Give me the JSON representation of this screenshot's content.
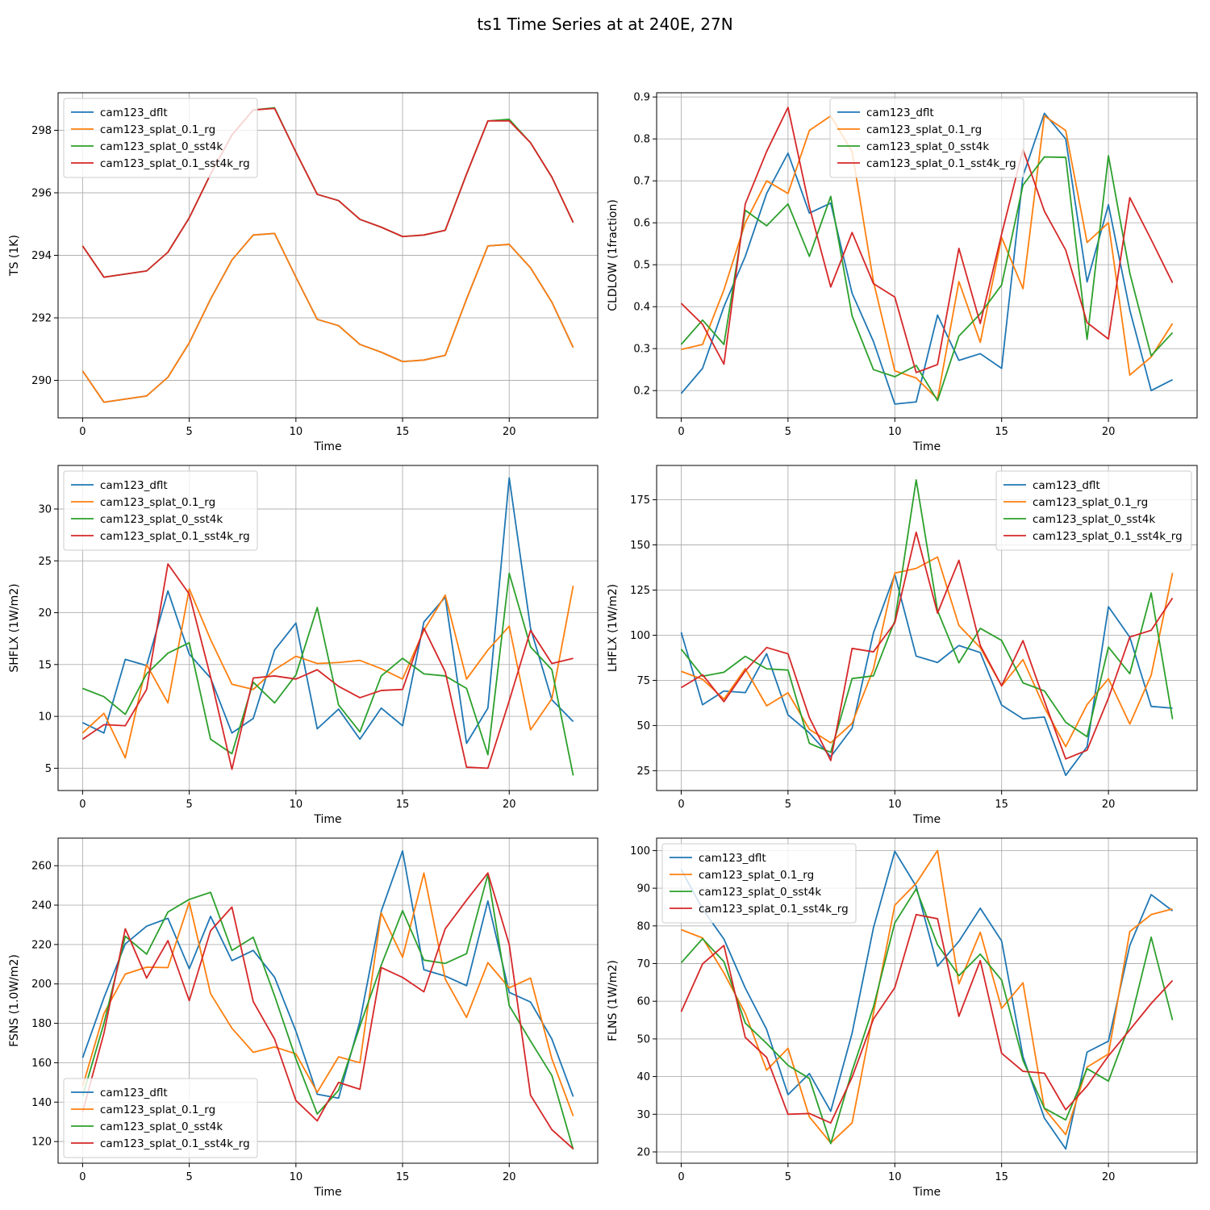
{
  "figure": {
    "title": "ts1 Time Series at at 240E, 27N"
  },
  "colors": {
    "cam123_dflt": "#1f77b4",
    "cam123_splat_0.1_rg": "#ff7f0e",
    "cam123_splat_0_sst4k": "#2ca02c",
    "cam123_splat_0.1_sst4k_rg": "#d62728"
  },
  "chart_data": [
    {
      "type": "line",
      "title": "",
      "xlabel": "Time",
      "ylabel": "TS (1K)",
      "xlim": [
        -1.15,
        24.15
      ],
      "ylim": [
        288.8,
        299.2
      ],
      "xticks": [
        0,
        5,
        10,
        15,
        20
      ],
      "yticks": [
        290,
        292,
        294,
        296,
        298
      ],
      "grid": true,
      "legend": "upper left",
      "x": [
        0,
        1,
        2,
        3,
        4,
        5,
        6,
        7,
        8,
        9,
        10,
        11,
        12,
        13,
        14,
        15,
        16,
        17,
        18,
        19,
        20,
        21,
        22,
        23
      ],
      "series": [
        {
          "name": "cam123_dflt",
          "values": [
            290.3,
            289.3,
            289.4,
            289.5,
            290.1,
            291.2,
            292.6,
            293.85,
            294.65,
            294.7,
            293.3,
            291.95,
            291.75,
            291.15,
            290.9,
            290.6,
            290.65,
            290.8,
            292.6,
            294.3,
            294.35,
            293.6,
            292.5,
            291.05
          ]
        },
        {
          "name": "cam123_splat_0.1_rg",
          "values": [
            290.3,
            289.3,
            289.4,
            289.5,
            290.1,
            291.2,
            292.6,
            293.85,
            294.65,
            294.7,
            293.3,
            291.95,
            291.75,
            291.15,
            290.9,
            290.6,
            290.65,
            290.8,
            292.6,
            294.3,
            294.35,
            293.6,
            292.5,
            291.05
          ]
        },
        {
          "name": "cam123_splat_0_sst4k",
          "values": [
            294.3,
            293.3,
            293.4,
            293.5,
            294.1,
            295.2,
            296.6,
            297.85,
            298.65,
            298.72,
            297.3,
            295.95,
            295.75,
            295.15,
            294.9,
            294.6,
            294.65,
            294.8,
            296.6,
            298.3,
            298.35,
            297.6,
            296.5,
            295.05
          ]
        },
        {
          "name": "cam123_splat_0.1_sst4k_rg",
          "values": [
            294.3,
            293.3,
            293.4,
            293.5,
            294.1,
            295.2,
            296.6,
            297.85,
            298.65,
            298.7,
            297.3,
            295.95,
            295.75,
            295.15,
            294.9,
            294.6,
            294.65,
            294.8,
            296.6,
            298.3,
            298.3,
            297.6,
            296.5,
            295.05
          ]
        }
      ]
    },
    {
      "type": "line",
      "title": "",
      "xlabel": "Time",
      "ylabel": "CLDLOW (1fraction)",
      "xlim": [
        -1.15,
        24.15
      ],
      "ylim": [
        0.135,
        0.91
      ],
      "xticks": [
        0,
        5,
        10,
        15,
        20
      ],
      "yticks": [
        0.2,
        0.3,
        0.4,
        0.5,
        0.6,
        0.7,
        0.8,
        0.9
      ],
      "grid": true,
      "legend": "upper center",
      "x": [
        0,
        1,
        2,
        3,
        4,
        5,
        6,
        7,
        8,
        9,
        10,
        11,
        12,
        13,
        14,
        15,
        16,
        17,
        18,
        19,
        20,
        21,
        22,
        23
      ],
      "series": [
        {
          "name": "cam123_dflt",
          "values": [
            0.193,
            0.253,
            0.4,
            0.52,
            0.67,
            0.766,
            0.623,
            0.647,
            0.432,
            0.317,
            0.168,
            0.173,
            0.38,
            0.272,
            0.288,
            0.253,
            0.712,
            0.861,
            0.8,
            0.459,
            0.643,
            0.392,
            0.2,
            0.226
          ]
        },
        {
          "name": "cam123_splat_0.1_rg",
          "values": [
            0.298,
            0.31,
            0.44,
            0.6,
            0.7,
            0.67,
            0.82,
            0.855,
            0.77,
            0.46,
            0.247,
            0.23,
            0.18,
            0.46,
            0.315,
            0.565,
            0.443,
            0.855,
            0.82,
            0.553,
            0.6,
            0.237,
            0.28,
            0.36
          ]
        },
        {
          "name": "cam123_splat_0_sst4k",
          "values": [
            0.31,
            0.368,
            0.31,
            0.63,
            0.593,
            0.645,
            0.52,
            0.663,
            0.378,
            0.25,
            0.233,
            0.26,
            0.176,
            0.33,
            0.383,
            0.452,
            0.69,
            0.757,
            0.756,
            0.322,
            0.76,
            0.48,
            0.283,
            0.338
          ]
        },
        {
          "name": "cam123_splat_0.1_sst4k_rg",
          "values": [
            0.408,
            0.358,
            0.263,
            0.645,
            0.77,
            0.875,
            0.638,
            0.447,
            0.577,
            0.455,
            0.423,
            0.243,
            0.262,
            0.539,
            0.36,
            0.573,
            0.775,
            0.628,
            0.535,
            0.362,
            0.323,
            0.66,
            0.56,
            0.457
          ]
        }
      ]
    },
    {
      "type": "line",
      "title": "",
      "xlabel": "Time",
      "ylabel": "SHFLX (1W/m2)",
      "xlim": [
        -1.15,
        24.15
      ],
      "ylim": [
        2.85,
        34.2
      ],
      "xticks": [
        0,
        5,
        10,
        15,
        20
      ],
      "yticks": [
        5,
        10,
        15,
        20,
        25,
        30
      ],
      "grid": true,
      "legend": "upper left",
      "x": [
        0,
        1,
        2,
        3,
        4,
        5,
        6,
        7,
        8,
        9,
        10,
        11,
        12,
        13,
        14,
        15,
        16,
        17,
        18,
        19,
        20,
        21,
        22,
        23
      ],
      "series": [
        {
          "name": "cam123_dflt",
          "values": [
            9.4,
            8.4,
            15.5,
            14.9,
            22.1,
            16.0,
            13.7,
            8.4,
            9.8,
            16.4,
            19.0,
            8.8,
            10.7,
            7.8,
            10.8,
            9.1,
            19.1,
            21.5,
            7.4,
            10.8,
            33.0,
            18.5,
            11.6,
            9.5
          ]
        },
        {
          "name": "cam123_splat_0.1_rg",
          "values": [
            8.4,
            10.3,
            6.0,
            15.0,
            11.3,
            22.3,
            17.4,
            13.1,
            12.6,
            14.5,
            15.8,
            15.1,
            15.2,
            15.4,
            14.6,
            13.6,
            18.3,
            21.7,
            13.6,
            16.4,
            18.7,
            8.7,
            11.7,
            22.6
          ]
        },
        {
          "name": "cam123_splat_0_sst4k",
          "values": [
            12.7,
            11.9,
            10.2,
            14.1,
            16.1,
            17.1,
            7.8,
            6.4,
            13.3,
            11.3,
            14.0,
            20.5,
            11.1,
            8.5,
            13.9,
            15.6,
            14.1,
            13.9,
            12.7,
            6.3,
            23.8,
            16.7,
            14.5,
            4.3
          ]
        },
        {
          "name": "cam123_splat_0.1_sst4k_rg",
          "values": [
            7.8,
            9.2,
            9.1,
            12.6,
            24.7,
            21.8,
            13.8,
            4.9,
            13.7,
            13.9,
            13.6,
            14.5,
            12.9,
            11.8,
            12.5,
            12.6,
            18.5,
            14.3,
            5.1,
            5.0,
            11.5,
            18.3,
            15.1,
            15.6
          ]
        }
      ]
    },
    {
      "type": "line",
      "title": "",
      "xlabel": "Time",
      "ylabel": "LHFLX (1W/m2)",
      "xlim": [
        -1.15,
        24.15
      ],
      "ylim": [
        14.0,
        194.0
      ],
      "xticks": [
        0,
        5,
        10,
        15,
        20
      ],
      "yticks": [
        25,
        50,
        75,
        100,
        125,
        150,
        175
      ],
      "grid": true,
      "legend": "upper right",
      "x": [
        0,
        1,
        2,
        3,
        4,
        5,
        6,
        7,
        8,
        9,
        10,
        11,
        12,
        13,
        14,
        15,
        16,
        17,
        18,
        19,
        20,
        21,
        22,
        23
      ],
      "series": [
        {
          "name": "cam123_dflt",
          "values": [
            101.6,
            61.5,
            69.1,
            68.2,
            89.8,
            55.9,
            45.9,
            32.7,
            48.5,
            101.3,
            133.7,
            88.4,
            84.9,
            94.3,
            90.4,
            61.3,
            53.7,
            54.7,
            22.4,
            38.3,
            115.8,
            98.9,
            60.6,
            59.6
          ]
        },
        {
          "name": "cam123_splat_0.1_rg",
          "values": [
            80.0,
            75.6,
            64.6,
            81.5,
            60.9,
            68.1,
            47.9,
            40.4,
            51.2,
            81.3,
            134.4,
            137.0,
            143.3,
            105.4,
            93.1,
            71.9,
            86.5,
            60.0,
            38.3,
            61.6,
            75.9,
            50.8,
            77.8,
            134.5
          ]
        },
        {
          "name": "cam123_splat_0_sst4k",
          "values": [
            92.3,
            77.3,
            79.5,
            88.3,
            81.4,
            80.7,
            40.1,
            35.2,
            76.0,
            77.5,
            108.0,
            186.0,
            113.6,
            84.7,
            103.8,
            97.1,
            73.6,
            69.2,
            51.8,
            43.8,
            93.4,
            78.7,
            123.4,
            53.5
          ]
        },
        {
          "name": "cam123_splat_0.1_sst4k_rg",
          "values": [
            71.0,
            78.1,
            63.2,
            80.3,
            93.2,
            89.7,
            54.4,
            30.6,
            92.7,
            90.8,
            106.9,
            157.0,
            112.2,
            141.5,
            94.3,
            72.0,
            97.0,
            63.6,
            31.5,
            36.3,
            65.2,
            99.0,
            102.7,
            120.6
          ]
        }
      ]
    },
    {
      "type": "line",
      "title": "",
      "xlabel": "Time",
      "ylabel": "FSNS (1.0W/m2)",
      "xlim": [
        -1.15,
        24.15
      ],
      "ylim": [
        109.0,
        274.0
      ],
      "xticks": [
        0,
        5,
        10,
        15,
        20
      ],
      "yticks": [
        120,
        140,
        160,
        180,
        200,
        220,
        240,
        260
      ],
      "grid": true,
      "legend": "lower left",
      "x": [
        0,
        1,
        2,
        3,
        4,
        5,
        6,
        7,
        8,
        9,
        10,
        11,
        12,
        13,
        14,
        15,
        16,
        17,
        18,
        19,
        20,
        21,
        22,
        23
      ],
      "series": [
        {
          "name": "cam123_dflt",
          "values": [
            162.5,
            193.0,
            220.3,
            229.3,
            233.3,
            207.7,
            234.3,
            211.8,
            217.0,
            203.4,
            176.0,
            144.0,
            142.0,
            181.0,
            236.9,
            267.5,
            207.2,
            204.0,
            199.1,
            242.1,
            195.7,
            190.8,
            172.0,
            142.8
          ]
        },
        {
          "name": "cam123_splat_0.1_rg",
          "values": [
            148.0,
            185.0,
            205.0,
            208.5,
            208.3,
            241.5,
            195.0,
            177.5,
            165.3,
            168.0,
            164.5,
            145.0,
            163.0,
            160.0,
            236.0,
            213.5,
            256.3,
            202.5,
            183.0,
            210.8,
            198.0,
            203.0,
            162.0,
            133.0
          ]
        },
        {
          "name": "cam123_splat_0_sst4k",
          "values": [
            143.0,
            180.0,
            224.2,
            215.1,
            236.5,
            242.9,
            246.5,
            217.0,
            223.7,
            194.0,
            162.0,
            134.0,
            146.0,
            178.5,
            209.5,
            237.2,
            212.1,
            210.4,
            215.4,
            255.5,
            189.0,
            171.0,
            153.5,
            116.0
          ]
        },
        {
          "name": "cam123_splat_0.1_sst4k_rg",
          "values": [
            135.0,
            175.0,
            228.0,
            203.0,
            222.0,
            191.5,
            227.0,
            239.0,
            191.0,
            172.0,
            140.8,
            130.5,
            150.0,
            146.5,
            208.3,
            203.3,
            196.0,
            228.0,
            242.5,
            256.3,
            220.0,
            143.5,
            126.0,
            116.3
          ]
        }
      ]
    },
    {
      "type": "line",
      "title": "",
      "xlabel": "Time",
      "ylabel": "FLNS (1W/m2)",
      "xlim": [
        -1.15,
        24.15
      ],
      "ylim": [
        17.0,
        103.3
      ],
      "xticks": [
        0,
        5,
        10,
        15,
        20
      ],
      "yticks": [
        20,
        30,
        40,
        50,
        60,
        70,
        80,
        90,
        100
      ],
      "grid": true,
      "legend": "upper left",
      "x": [
        0,
        1,
        2,
        3,
        4,
        5,
        6,
        7,
        8,
        9,
        10,
        11,
        12,
        13,
        14,
        15,
        16,
        17,
        18,
        19,
        20,
        21,
        22,
        23
      ],
      "series": [
        {
          "name": "cam123_dflt",
          "values": [
            95.0,
            84.5,
            76.5,
            63.5,
            52.5,
            35.2,
            40.8,
            30.8,
            51.5,
            79.5,
            99.8,
            90.5,
            69.3,
            75.9,
            84.7,
            76.0,
            45.3,
            29.0,
            20.8,
            46.5,
            49.4,
            74.8,
            88.3,
            84.0
          ]
        },
        {
          "name": "cam123_splat_0.1_rg",
          "values": [
            79.0,
            76.8,
            67.5,
            56.8,
            41.7,
            47.5,
            29.3,
            22.4,
            27.7,
            56.8,
            85.5,
            91.3,
            100.0,
            64.6,
            78.3,
            58.1,
            64.9,
            31.5,
            24.6,
            42.5,
            46.0,
            78.5,
            83.0,
            84.5
          ]
        },
        {
          "name": "cam123_splat_0_sst4k",
          "values": [
            70.2,
            76.6,
            70.5,
            54.2,
            48.8,
            43.0,
            39.5,
            22.2,
            41.5,
            58.5,
            80.8,
            89.8,
            75.0,
            66.8,
            72.5,
            65.6,
            44.3,
            31.6,
            28.5,
            42.1,
            38.8,
            54.0,
            77.0,
            55.0
          ]
        },
        {
          "name": "cam123_splat_0.1_sst4k_rg",
          "values": [
            57.2,
            69.9,
            74.8,
            50.4,
            45.1,
            30.0,
            30.2,
            27.7,
            39.8,
            55.3,
            63.6,
            83.0,
            81.9,
            56.0,
            70.8,
            46.2,
            41.4,
            40.9,
            31.2,
            37.5,
            45.5,
            52.4,
            59.4,
            65.5
          ]
        }
      ]
    }
  ]
}
